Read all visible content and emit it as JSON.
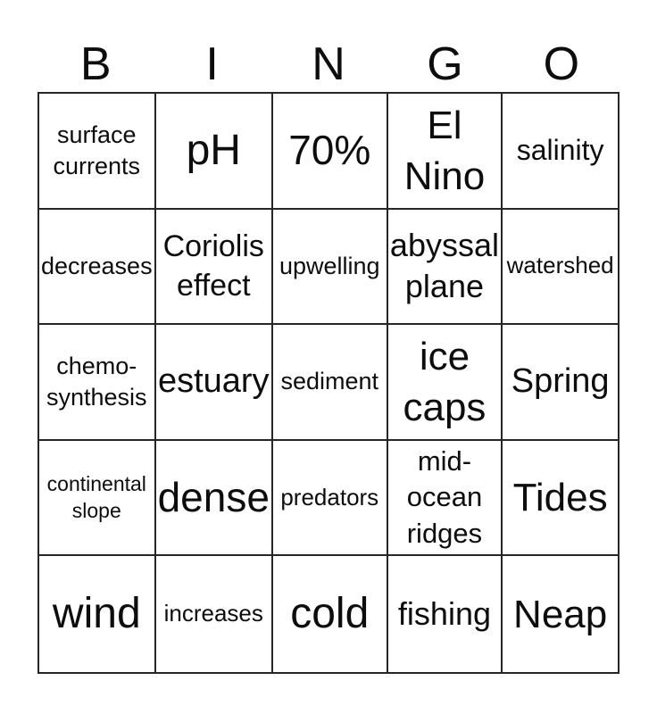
{
  "colors": {
    "background": "#ffffff",
    "text": "#0d0d0d",
    "grid_line": "#262626"
  },
  "header": {
    "letters": [
      "B",
      "I",
      "N",
      "G",
      "O"
    ]
  },
  "board": {
    "rows": [
      {
        "cells": [
          {
            "text": "surface\ncurrents"
          },
          {
            "text": "pH"
          },
          {
            "text": "70%"
          },
          {
            "text": "El\nNino"
          },
          {
            "text": "salinity"
          }
        ]
      },
      {
        "cells": [
          {
            "text": "decreases"
          },
          {
            "text": "Coriolis\neffect"
          },
          {
            "text": "upwelling"
          },
          {
            "text": "abyssal\nplane"
          },
          {
            "text": "watershed"
          }
        ]
      },
      {
        "cells": [
          {
            "text": "chemo-\nsynthesis"
          },
          {
            "text": "estuary"
          },
          {
            "text": "sediment"
          },
          {
            "text": "ice\ncaps"
          },
          {
            "text": "Spring"
          }
        ]
      },
      {
        "cells": [
          {
            "text": "continental\nslope"
          },
          {
            "text": "dense"
          },
          {
            "text": "predators"
          },
          {
            "text": "mid-\nocean\nridges"
          },
          {
            "text": "Tides"
          }
        ]
      },
      {
        "cells": [
          {
            "text": "wind"
          },
          {
            "text": "increases"
          },
          {
            "text": "cold"
          },
          {
            "text": "fishing"
          },
          {
            "text": "Neap"
          }
        ]
      }
    ]
  }
}
